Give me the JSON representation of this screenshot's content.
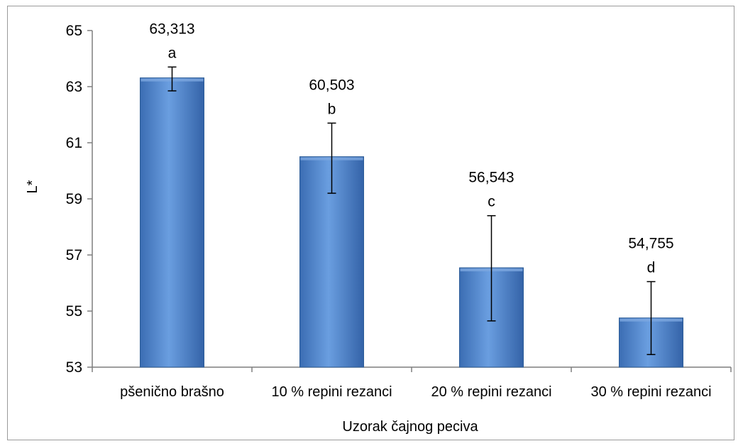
{
  "chart_data": {
    "type": "bar",
    "categories": [
      "pšenično brašno",
      "10 % repini rezanci",
      "20 % repini rezanci",
      "30 % repini rezanci"
    ],
    "values": [
      63.313,
      60.503,
      56.543,
      54.755
    ],
    "value_labels": [
      "63,313",
      "60,503",
      "56,543",
      "54,755"
    ],
    "significance_letters": [
      "a",
      "b",
      "c",
      "d"
    ],
    "error_bars": [
      {
        "low": 62.85,
        "high": 63.7
      },
      {
        "low": 59.2,
        "high": 61.7
      },
      {
        "low": 54.65,
        "high": 58.4
      },
      {
        "low": 53.45,
        "high": 56.05
      }
    ],
    "xlabel": "Uzorak čajnog peciva",
    "ylabel": "L*",
    "ylim": [
      53,
      65
    ],
    "yticks": [
      53,
      55,
      57,
      59,
      61,
      63,
      65
    ],
    "grid": false,
    "colors": {
      "bar_fill": "#4f81bd",
      "bar_edge": "#2c5c97",
      "bar_light": "#7da7e0",
      "axis": "#7f7f7f"
    }
  }
}
